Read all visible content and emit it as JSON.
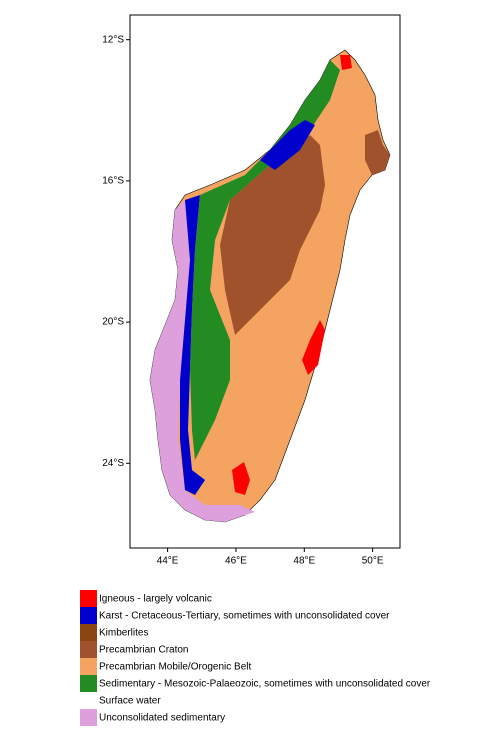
{
  "chart_data": {
    "type": "map",
    "xlim": [
      42.9,
      50.8
    ],
    "ylim": [
      -26.4,
      -11.3
    ],
    "xticks": [
      {
        "value": 44,
        "label": "44°E"
      },
      {
        "value": 46,
        "label": "46°E"
      },
      {
        "value": 48,
        "label": "48°E"
      },
      {
        "value": 50,
        "label": "50°E"
      }
    ],
    "yticks": [
      {
        "value": -12,
        "label": "12°S"
      },
      {
        "value": -16,
        "label": "16°S"
      },
      {
        "value": -20,
        "label": "20°S"
      },
      {
        "value": -24,
        "label": "24°S"
      }
    ],
    "legend": [
      {
        "name": "Igneous - largely volcanic",
        "color": "#ff0000"
      },
      {
        "name": "Karst - Cretaceous-Tertiary, sometimes with unconsolidated cover",
        "color": "#0000cd"
      },
      {
        "name": "Kimberlites",
        "color": "#8b4513"
      },
      {
        "name": "Precambrian Craton",
        "color": "#a0522d"
      },
      {
        "name": "Precambrian Mobile/Orogenic Belt",
        "color": "#f4a460"
      },
      {
        "name": "Sedimentary - Mesozoic-Palaeozoic, sometimes with unconsolidated cover",
        "color": "#228b22"
      },
      {
        "name": "Surface water",
        "color": "#ffffff"
      },
      {
        "name": "Unconsolidated sedimentary",
        "color": "#dda0dd"
      }
    ]
  }
}
